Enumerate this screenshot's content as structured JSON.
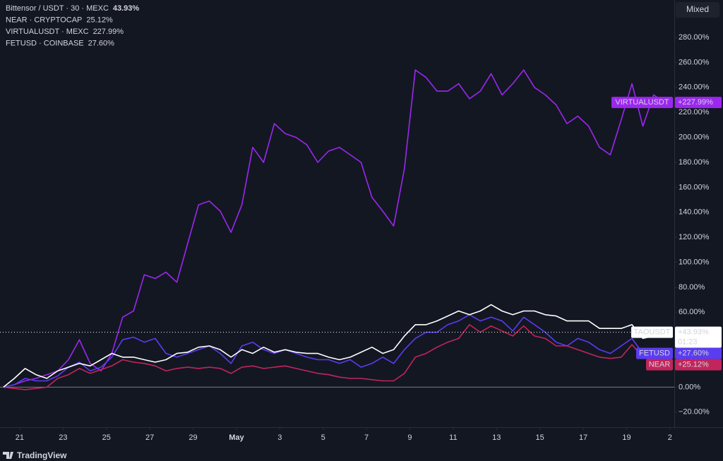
{
  "chart_data": {
    "type": "line",
    "x": [
      20.25,
      20.75,
      21.25,
      21.75,
      22.25,
      22.75,
      23.25,
      23.75,
      24.25,
      24.75,
      25.25,
      25.75,
      26.25,
      26.75,
      27.25,
      27.75,
      28.25,
      28.75,
      29.25,
      29.75,
      30.25,
      30.75,
      31.25,
      31.75,
      32.25,
      32.75,
      33.25,
      33.75,
      34.25,
      34.75,
      35.25,
      35.75,
      36.25,
      36.75,
      37.25,
      37.75,
      38.25,
      38.75,
      39.25,
      39.75,
      40.25,
      40.75,
      41.25,
      41.75,
      42.25,
      42.75,
      43.25,
      43.75,
      44.25,
      44.75,
      45.25,
      45.75,
      46.25,
      46.75,
      47.25,
      47.75,
      48.25,
      48.75,
      49.25,
      49.75,
      50.25,
      50.75
    ],
    "xlim": [
      20.09,
      51.2
    ],
    "xticks": [
      21,
      23,
      25,
      27,
      29,
      {
        "value": 31,
        "label": "May"
      },
      {
        "value": 33,
        "label": "3"
      },
      {
        "value": 35,
        "label": "5"
      },
      {
        "value": 37,
        "label": "7"
      },
      {
        "value": 39,
        "label": "9"
      },
      {
        "value": 41,
        "label": "11"
      },
      {
        "value": 43,
        "label": "13"
      },
      {
        "value": 45,
        "label": "15"
      },
      {
        "value": 47,
        "label": "17"
      },
      {
        "value": 49,
        "label": "19"
      },
      {
        "value": 51,
        "label": "2"
      }
    ],
    "ylim": [
      -32,
      310
    ],
    "yticks": [
      {
        "value": -20,
        "label": "−20.00%"
      },
      {
        "value": 0,
        "label": "0.00%"
      },
      {
        "value": 20,
        "label": "20.00%"
      },
      {
        "value": 40,
        "label": "40.00%"
      },
      {
        "value": 60,
        "label": "60.00%"
      },
      {
        "value": 80,
        "label": "80.00%"
      },
      {
        "value": 100,
        "label": "100.00%"
      },
      {
        "value": 120,
        "label": "120.00%"
      },
      {
        "value": 140,
        "label": "140.00%"
      },
      {
        "value": 160,
        "label": "160.00%"
      },
      {
        "value": 180,
        "label": "180.00%"
      },
      {
        "value": 200,
        "label": "200.00%"
      },
      {
        "value": 220,
        "label": "220.00%"
      },
      {
        "value": 240,
        "label": "240.00%"
      },
      {
        "value": 260,
        "label": "260.00%"
      },
      {
        "value": 280,
        "label": "280.00%"
      }
    ],
    "series": [
      {
        "name": "Bittensor / USDT · 30 · MEXC",
        "legend_value": "43.93%",
        "tag": "TAOUSDT",
        "last_label": "+43.93%",
        "countdown": "01:23",
        "color": "#ffffff",
        "values": [
          0,
          7,
          15,
          10,
          7,
          13,
          16,
          19,
          17,
          22,
          27,
          24,
          24,
          22,
          20,
          22,
          27,
          28,
          32,
          33,
          30,
          24,
          30,
          27,
          32,
          28,
          30,
          28,
          27,
          27,
          24,
          22,
          24,
          28,
          32,
          27,
          30,
          41,
          50,
          50,
          53,
          57,
          61,
          58,
          61,
          66,
          61,
          58,
          61,
          61,
          58,
          57,
          53,
          53,
          53,
          47,
          47,
          47,
          50,
          39,
          41,
          43.93
        ]
      },
      {
        "name": "NEAR · CRYPTOCAP",
        "legend_value": "25.12%",
        "tag": "NEAR",
        "last_label": "+25.12%",
        "color": "#c2255c",
        "values": [
          0,
          -1,
          -2,
          -1,
          0,
          7,
          10,
          15,
          11,
          14,
          17,
          22,
          20,
          19,
          17,
          13,
          15,
          16,
          15,
          16,
          15,
          11,
          16,
          17,
          15,
          16,
          17,
          15,
          13,
          11,
          10,
          8,
          7,
          7,
          6,
          5,
          5,
          11,
          24,
          27,
          32,
          36,
          39,
          50,
          44,
          49,
          45,
          41,
          49,
          41,
          39,
          33,
          33,
          30,
          27,
          24,
          23,
          24,
          34,
          24,
          22,
          25.12
        ]
      },
      {
        "name": "VIRTUALUSDT · MEXC",
        "legend_value": "227.99%",
        "tag": "VIRTUALUSDT",
        "last_label": "+227.99%",
        "color": "#9c27f0",
        "values": [
          0,
          2,
          5,
          7,
          10,
          13,
          22,
          38,
          19,
          13,
          27,
          56,
          61,
          90,
          87,
          92,
          84,
          115,
          146,
          149,
          141,
          124,
          146,
          192,
          180,
          211,
          203,
          200,
          194,
          180,
          189,
          192,
          186,
          180,
          152,
          141,
          129,
          175,
          254,
          248,
          237,
          237,
          243,
          231,
          237,
          251,
          234,
          243,
          254,
          240,
          234,
          226,
          211,
          217,
          209,
          192,
          186,
          214,
          243,
          209,
          234,
          227.99
        ]
      },
      {
        "name": "FETUSD · COINBASE",
        "legend_value": "27.60%",
        "tag": "FETUSD",
        "last_label": "+27.60%",
        "color": "#5b3cf0",
        "values": [
          0,
          2,
          7,
          5,
          5,
          9,
          16,
          20,
          13,
          16,
          24,
          38,
          40,
          36,
          39,
          27,
          24,
          27,
          30,
          33,
          27,
          19,
          33,
          36,
          30,
          27,
          30,
          27,
          24,
          22,
          22,
          19,
          22,
          16,
          19,
          24,
          19,
          30,
          39,
          44,
          44,
          50,
          53,
          58,
          53,
          56,
          53,
          45,
          56,
          50,
          44,
          36,
          33,
          39,
          36,
          30,
          27,
          33,
          39,
          27,
          24,
          27.6
        ]
      }
    ],
    "grid": false
  },
  "ui": {
    "mode_button": "Mixed",
    "watermark": "TradingView"
  }
}
